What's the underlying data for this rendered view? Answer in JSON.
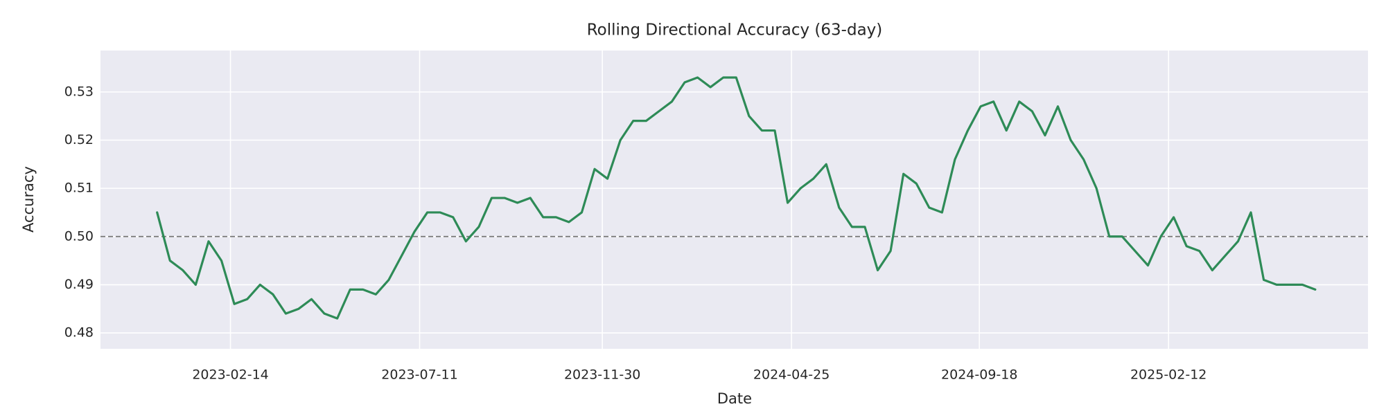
{
  "chart_data": {
    "type": "line",
    "title": "Rolling Directional Accuracy (63-day)",
    "x_label": "Date",
    "y_label": "Accuracy",
    "background": "#eaeaf2",
    "grid": true,
    "xlim": [
      "2022-11-05",
      "2025-07-17"
    ],
    "xticks": [
      "2023-02-14",
      "2023-07-11",
      "2023-11-30",
      "2024-04-25",
      "2024-09-18",
      "2025-02-12"
    ],
    "ylim": [
      0.4767,
      0.5386
    ],
    "yticks": [
      0.48,
      0.49,
      {
        "value": 0.5,
        "label": "0.50"
      },
      0.51,
      0.52,
      0.53
    ],
    "hline": {
      "value": 0.5,
      "color": "#777777",
      "style": "dashed"
    },
    "x": [
      "2022-12-19",
      "2022-12-29",
      "2023-01-08",
      "2023-01-18",
      "2023-01-28",
      "2023-02-07",
      "2023-02-17",
      "2023-02-27",
      "2023-03-09",
      "2023-03-19",
      "2023-03-29",
      "2023-04-08",
      "2023-04-18",
      "2023-04-28",
      "2023-05-08",
      "2023-05-18",
      "2023-05-28",
      "2023-06-07",
      "2023-06-17",
      "2023-06-27",
      "2023-07-07",
      "2023-07-17",
      "2023-07-27",
      "2023-08-06",
      "2023-08-16",
      "2023-08-26",
      "2023-09-05",
      "2023-09-15",
      "2023-09-25",
      "2023-10-05",
      "2023-10-15",
      "2023-10-25",
      "2023-11-04",
      "2023-11-14",
      "2023-11-24",
      "2023-12-04",
      "2023-12-14",
      "2023-12-24",
      "2024-01-03",
      "2024-01-13",
      "2024-01-23",
      "2024-02-02",
      "2024-02-12",
      "2024-02-22",
      "2024-03-03",
      "2024-03-13",
      "2024-03-23",
      "2024-04-02",
      "2024-04-12",
      "2024-04-22",
      "2024-05-02",
      "2024-05-12",
      "2024-05-22",
      "2024-06-01",
      "2024-06-11",
      "2024-06-21",
      "2024-07-01",
      "2024-07-11",
      "2024-07-21",
      "2024-07-31",
      "2024-08-10",
      "2024-08-20",
      "2024-08-30",
      "2024-09-09",
      "2024-09-19",
      "2024-09-29",
      "2024-10-09",
      "2024-10-19",
      "2024-10-29",
      "2024-11-08",
      "2024-11-18",
      "2024-11-28",
      "2024-12-08",
      "2024-12-18",
      "2024-12-28",
      "2025-01-07",
      "2025-01-17",
      "2025-01-27",
      "2025-02-06",
      "2025-02-16",
      "2025-02-26",
      "2025-03-08",
      "2025-03-18",
      "2025-03-28",
      "2025-04-07",
      "2025-04-17",
      "2025-04-27",
      "2025-05-07",
      "2025-05-17",
      "2025-05-27",
      "2025-06-06"
    ],
    "series": [
      {
        "name": "Accuracy",
        "color": "#2e8b57",
        "values": [
          0.505,
          0.495,
          0.493,
          0.49,
          0.499,
          0.495,
          0.486,
          0.487,
          0.49,
          0.488,
          0.484,
          0.485,
          0.487,
          0.484,
          0.483,
          0.489,
          0.489,
          0.488,
          0.491,
          0.496,
          0.501,
          0.505,
          0.505,
          0.504,
          0.499,
          0.502,
          0.508,
          0.508,
          0.507,
          0.508,
          0.504,
          0.504,
          0.503,
          0.505,
          0.514,
          0.512,
          0.52,
          0.524,
          0.524,
          0.526,
          0.528,
          0.532,
          0.533,
          0.531,
          0.533,
          0.533,
          0.525,
          0.522,
          0.522,
          0.507,
          0.51,
          0.512,
          0.515,
          0.506,
          0.502,
          0.502,
          0.493,
          0.497,
          0.513,
          0.511,
          0.506,
          0.505,
          0.516,
          0.522,
          0.527,
          0.528,
          0.522,
          0.528,
          0.526,
          0.521,
          0.527,
          0.52,
          0.516,
          0.51,
          0.5,
          0.5,
          0.497,
          0.494,
          0.5,
          0.504,
          0.498,
          0.497,
          0.493,
          0.496,
          0.499,
          0.505,
          0.491,
          0.49,
          0.49,
          0.49,
          0.489
        ]
      }
    ]
  }
}
